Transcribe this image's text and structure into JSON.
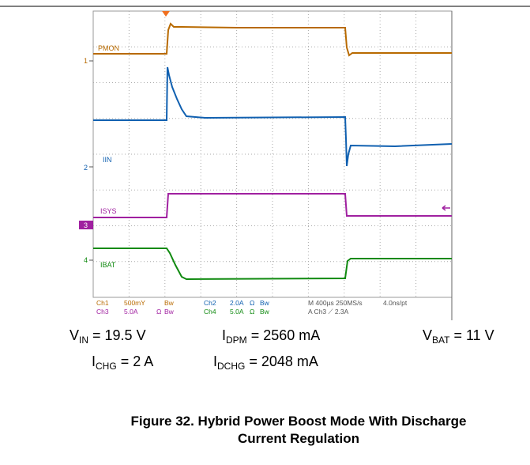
{
  "scope": {
    "channel_labels": [
      "PMON",
      "IIN",
      "ISYS",
      "IBAT"
    ],
    "markers": [
      "1",
      "2",
      "3",
      "4"
    ],
    "settings_row1": [
      "Ch1",
      "500mY",
      "Bw",
      "Ch2",
      "2.0A",
      "Ω",
      "Bw",
      "M 400µs 250MS/s",
      "4.0ns/pt"
    ],
    "settings_row2": [
      "Ch3",
      "5.0A",
      "Ω",
      "Bw",
      "Ch4",
      "5.0A",
      "Ω",
      "Bw",
      "A  Ch3  ⟋  2.3A"
    ]
  },
  "conditions": [
    {
      "symbol": "V",
      "sub": "IN",
      "text": " = 19.5 V"
    },
    {
      "symbol": "I",
      "sub": "DPM",
      "text": " = 2560 mA"
    },
    {
      "symbol": "V",
      "sub": "BAT",
      "text": " = 11 V"
    },
    {
      "symbol": "I",
      "sub": "CHG",
      "text": " = 2 A"
    },
    {
      "symbol": "I",
      "sub": "DCHG",
      "text": " = 2048 mA"
    }
  ],
  "caption": "Figure 32. Hybrid Power Boost Mode With Discharge Current Regulation"
}
